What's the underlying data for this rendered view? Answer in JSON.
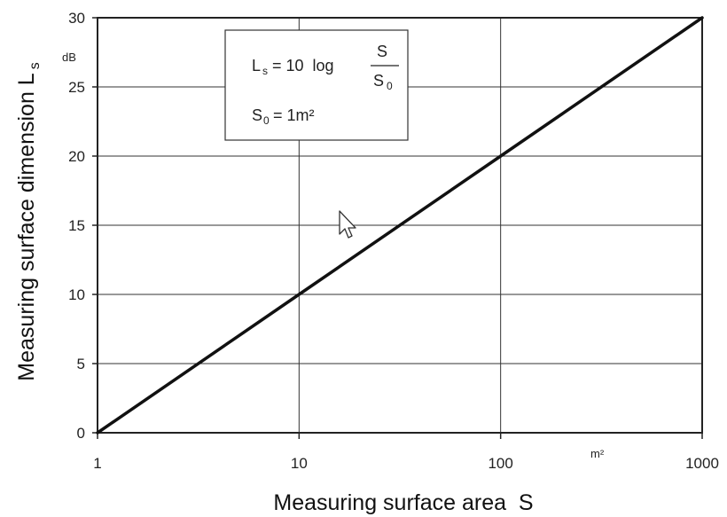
{
  "chart_data": {
    "type": "line",
    "xlabel": "Measuring surface area  S",
    "ylabel": "Measuring surface dimension L",
    "ylabel_sub": "s",
    "x_unit": "m²",
    "y_unit": "dB",
    "x_scale": "log",
    "xlim": [
      1,
      1000
    ],
    "ylim": [
      0,
      30
    ],
    "x_ticks": [
      1,
      10,
      100,
      1000
    ],
    "x_tick_labels": [
      "1",
      "10",
      "100",
      "1000"
    ],
    "y_ticks": [
      0,
      5,
      10,
      15,
      20,
      25,
      30
    ],
    "y_tick_labels": [
      "0",
      "5",
      "10",
      "15",
      "20",
      "25",
      "30"
    ],
    "grid": true,
    "series": [
      {
        "x": [
          1,
          10,
          100,
          1000
        ],
        "y": [
          0,
          10,
          20,
          30
        ],
        "color": "#111111"
      }
    ],
    "annotation": {
      "lhs": "L",
      "lhs_sub": "s",
      "eq": "= 10  log",
      "num": "S",
      "den": "S",
      "den_sub": "0",
      "line2_lhs": "S",
      "line2_sub": "0",
      "line2_rhs": "= 1m²"
    }
  }
}
